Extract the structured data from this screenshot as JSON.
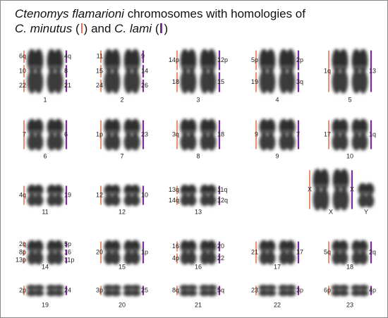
{
  "title": {
    "species": "Ctenomys flamarioni",
    "text": "chromosomes with homologies of",
    "minutus": "C. minutus",
    "open": "(",
    "close": ")",
    "and": "and",
    "lami": "C. lami"
  },
  "rows": [
    [
      {
        "number": "1",
        "left": [
          "6q",
          "10",
          "22"
        ],
        "right": [
          "4q",
          "8",
          "21"
        ]
      },
      {
        "number": "2",
        "left": [
          "11",
          "15",
          "24"
        ],
        "right": [
          "9",
          "14",
          "26"
        ]
      },
      {
        "number": "3",
        "left": [
          "14p",
          "18"
        ],
        "right": [
          "12p",
          "15"
        ]
      },
      {
        "number": "4",
        "left": [
          "5p",
          "19"
        ],
        "right": [
          "2p",
          "3q"
        ]
      },
      {
        "number": "5",
        "left": [
          "1q"
        ],
        "right": [
          "13"
        ]
      }
    ],
    [
      {
        "number": "6",
        "left": [
          "7"
        ],
        "right": [
          "6"
        ]
      },
      {
        "number": "7",
        "left": [
          "1p"
        ],
        "right": [
          "23"
        ]
      },
      {
        "number": "8",
        "left": [
          "3q"
        ],
        "right": [
          "18"
        ]
      },
      {
        "number": "9",
        "left": [
          "9"
        ],
        "right": [
          "7"
        ]
      },
      {
        "number": "10",
        "left": [
          "17"
        ],
        "right": [
          "1q"
        ]
      }
    ],
    [
      {
        "number": "11",
        "left": [
          "4q"
        ],
        "right": [
          "19"
        ]
      },
      {
        "number": "12",
        "left": [
          "12"
        ],
        "right": [
          "10"
        ]
      },
      {
        "number": "13",
        "left": [
          "13q",
          "14q"
        ],
        "right": [
          "11q",
          "12q"
        ]
      },
      {
        "number": "X",
        "left": [
          "X"
        ],
        "right": [
          "X"
        ]
      },
      {
        "number": "Y",
        "left": [],
        "right": []
      }
    ],
    [
      {
        "number": "14",
        "left": [
          "2q",
          "8p",
          "13p"
        ],
        "right": [
          "5p",
          "16",
          "11p"
        ]
      },
      {
        "number": "15",
        "left": [
          "20"
        ],
        "right": [
          "1p"
        ]
      },
      {
        "number": "16",
        "left": [
          "16",
          "4p"
        ],
        "right": [
          "20",
          "22"
        ]
      },
      {
        "number": "17",
        "left": [
          "21"
        ],
        "right": [
          "17"
        ]
      },
      {
        "number": "18",
        "left": [
          "5q"
        ],
        "right": [
          "2q"
        ]
      }
    ],
    [
      {
        "number": "19",
        "left": [
          "2p"
        ],
        "right": [
          "24"
        ]
      },
      {
        "number": "20",
        "left": [
          "3p"
        ],
        "right": [
          "25"
        ]
      },
      {
        "number": "21",
        "left": [
          "8q"
        ],
        "right": [
          "5q"
        ]
      },
      {
        "number": "22",
        "left": [
          "23"
        ],
        "right": [
          "3p"
        ]
      },
      {
        "number": "23",
        "left": [
          "6p"
        ],
        "right": [
          "4p"
        ]
      }
    ]
  ]
}
